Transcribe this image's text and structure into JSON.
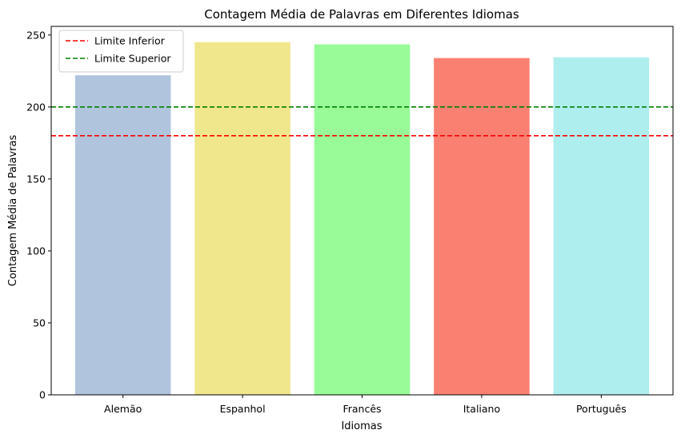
{
  "chart_data": {
    "type": "bar",
    "title": "Contagem Média de Palavras em Diferentes Idiomas",
    "xlabel": "Idiomas",
    "ylabel": "Contagem Média de Palavras",
    "categories": [
      "Alemão",
      "Espanhol",
      "Francês",
      "Italiano",
      "Português"
    ],
    "values": [
      222,
      245,
      243.5,
      234,
      234.5
    ],
    "colors": [
      "#b0c4de",
      "#f0e68c",
      "#98fb98",
      "#fa8072",
      "#afeeee"
    ],
    "ylim": [
      0,
      256
    ],
    "yticks": [
      0,
      50,
      100,
      150,
      200,
      250
    ],
    "grid": false,
    "hlines": [
      {
        "name": "Limite Inferior",
        "y": 180,
        "color": "#ff0000",
        "style": "dashed"
      },
      {
        "name": "Limite Superior",
        "y": 200,
        "color": "#008000",
        "style": "dashed"
      }
    ],
    "legend_position": "top-left"
  }
}
